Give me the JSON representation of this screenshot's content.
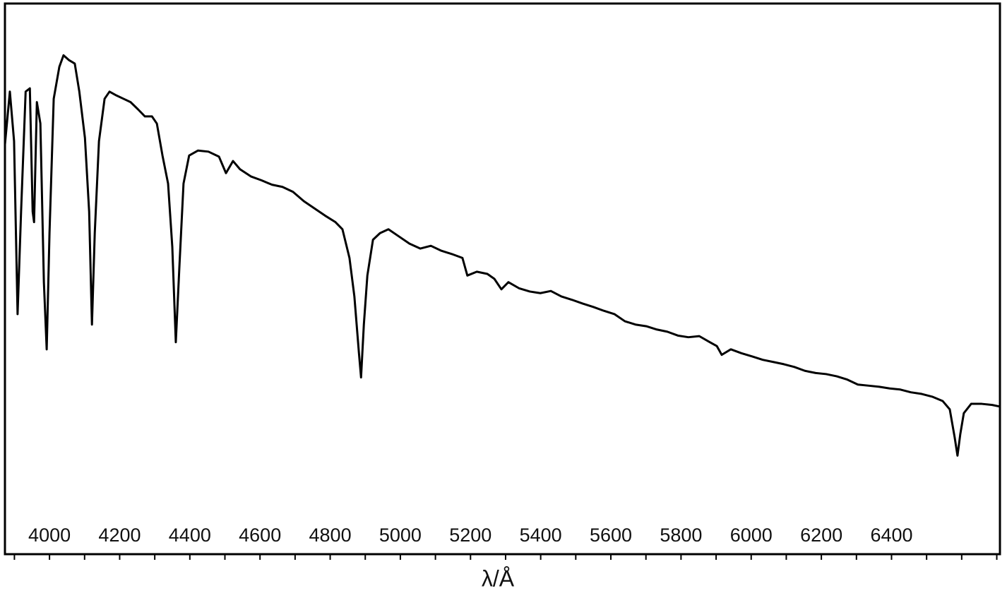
{
  "chart_data": {
    "type": "line",
    "x_label": "λ/Å",
    "x": [
      3873,
      3887,
      3899,
      3909,
      3919,
      3932,
      3944,
      3952,
      3956,
      3964,
      3974,
      3984,
      3992,
      4000,
      4012,
      4028,
      4040,
      4056,
      4072,
      4085,
      4101,
      4113,
      4121,
      4129,
      4141,
      4157,
      4171,
      4191,
      4211,
      4231,
      4252,
      4272,
      4292,
      4306,
      4322,
      4338,
      4350,
      4360,
      4370,
      4382,
      4398,
      4423,
      4453,
      4483,
      4503,
      4523,
      4543,
      4574,
      4604,
      4634,
      4664,
      4694,
      4725,
      4755,
      4785,
      4815,
      4835,
      4855,
      4869,
      4882,
      4888,
      4896,
      4906,
      4922,
      4942,
      4966,
      4996,
      5026,
      5057,
      5087,
      5117,
      5147,
      5177,
      5191,
      5218,
      5248,
      5268,
      5288,
      5308,
      5338,
      5369,
      5399,
      5429,
      5459,
      5489,
      5520,
      5550,
      5580,
      5610,
      5640,
      5670,
      5701,
      5731,
      5761,
      5791,
      5821,
      5852,
      5882,
      5902,
      5916,
      5942,
      5972,
      6003,
      6033,
      6063,
      6093,
      6123,
      6153,
      6184,
      6214,
      6244,
      6274,
      6304,
      6335,
      6365,
      6395,
      6425,
      6455,
      6486,
      6516,
      6546,
      6566,
      6580,
      6588,
      6596,
      6606,
      6627,
      6657,
      6687,
      6709
    ],
    "values": [
      74.4,
      84.0,
      75.0,
      43.6,
      62.2,
      84.0,
      84.6,
      62.2,
      60.3,
      82.1,
      78.2,
      49.4,
      37.2,
      58.3,
      82.7,
      88.5,
      90.6,
      89.7,
      89.1,
      84.0,
      75.6,
      62.2,
      41.7,
      58.3,
      75.0,
      82.7,
      84.0,
      83.3,
      82.7,
      82.1,
      80.8,
      79.5,
      79.5,
      78.2,
      72.4,
      67.3,
      55.8,
      38.5,
      51.9,
      67.3,
      72.4,
      73.3,
      73.1,
      72.2,
      69.2,
      71.4,
      69.9,
      68.6,
      67.9,
      67.1,
      66.7,
      65.8,
      64.1,
      62.8,
      61.5,
      60.3,
      59.0,
      53.8,
      46.8,
      36.5,
      32.1,
      41.7,
      50.6,
      57.1,
      58.3,
      59.0,
      57.7,
      56.4,
      55.5,
      56.0,
      55.1,
      54.5,
      53.8,
      50.6,
      51.3,
      50.9,
      50.0,
      48.1,
      49.4,
      48.3,
      47.7,
      47.4,
      47.8,
      46.8,
      46.2,
      45.5,
      44.9,
      44.2,
      43.6,
      42.3,
      41.7,
      41.4,
      40.8,
      40.4,
      39.7,
      39.4,
      39.6,
      38.5,
      37.8,
      36.2,
      37.2,
      36.5,
      35.9,
      35.3,
      34.9,
      34.5,
      34.0,
      33.3,
      32.9,
      32.7,
      32.3,
      31.7,
      30.8,
      30.6,
      30.4,
      30.1,
      29.9,
      29.4,
      29.1,
      28.6,
      27.8,
      26.3,
      21.2,
      17.9,
      21.8,
      25.6,
      27.3,
      27.3,
      27.1,
      26.8
    ],
    "color": "#000000",
    "xlim": [
      3873,
      6709
    ],
    "ylim": [
      0,
      100
    ],
    "xticks": [
      4000,
      4200,
      4400,
      4600,
      4800,
      5000,
      5200,
      5400,
      5600,
      5800,
      6000,
      6200,
      6400
    ],
    "xminor_ticks": [
      3900,
      4100,
      4300,
      4500,
      4700,
      4900,
      5100,
      5300,
      5500,
      5700,
      5900,
      6100,
      6300,
      6500,
      6600,
      6700
    ]
  }
}
